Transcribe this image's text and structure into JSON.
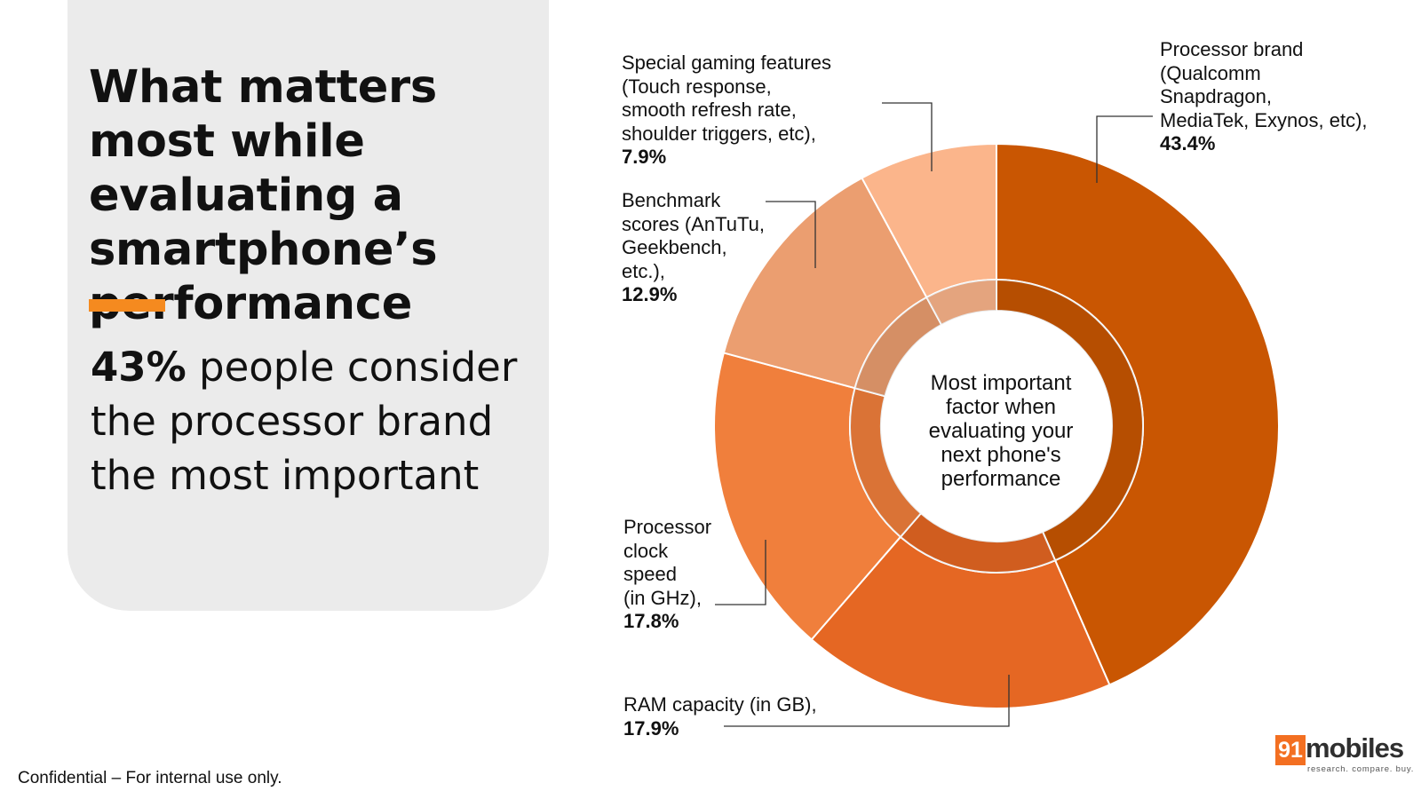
{
  "headline": "What matters most while evaluating a smartphone’s performance",
  "stat": {
    "highlight": "43%",
    "text": " people consider the processor brand the most important"
  },
  "footer": "Confidential – For internal use only.",
  "logo": {
    "number": "91",
    "word": "mobiles",
    "tagline": "research. compare. buy."
  },
  "colors": {
    "accent": "#f58a1f",
    "panel": "#ebebeb"
  },
  "chart_data": {
    "type": "pie",
    "style": "donut",
    "center_label": "Most important\nfactor when\nevaluating your\nnext phone's\nperformance",
    "slices": [
      {
        "label": "Processor brand\n(Qualcomm\nSnapdragon,\nMediaTek, Exynos, etc),",
        "value_text": "43.4%",
        "value": 43.4,
        "color": "#c95602"
      },
      {
        "label": "RAM capacity (in GB),",
        "value_text": "17.9%",
        "value": 17.9,
        "color": "#e56723"
      },
      {
        "label": "Processor\nclock\nspeed\n(in GHz),",
        "value_text": "17.8%",
        "value": 17.8,
        "color": "#f07f3c"
      },
      {
        "label": "Benchmark\nscores (AnTuTu,\nGeekbench,\netc.),",
        "value_text": "12.9%",
        "value": 12.9,
        "color": "#eb9e70"
      },
      {
        "label": "Special gaming features\n(Touch response,\nsmooth refresh rate,\nshoulder triggers, etc),",
        "value_text": "7.9%",
        "value": 7.9,
        "color": "#fbb58b"
      }
    ]
  }
}
